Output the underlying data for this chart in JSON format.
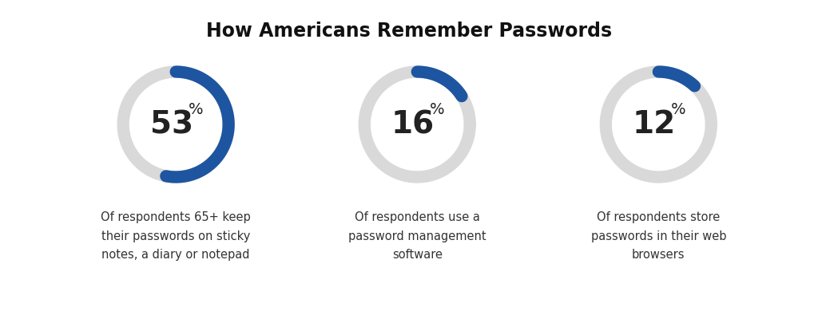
{
  "title": "How Americans Remember Passwords",
  "background_color": "#ffffff",
  "title_fontsize": 17,
  "title_fontweight": "bold",
  "title_color": "#111111",
  "donut_blue": "#1e55a0",
  "donut_gray": "#d9d9d9",
  "donut_linewidth": 11,
  "text_color": "#222222",
  "desc_color": "#333333",
  "items": [
    {
      "percent": 53,
      "label_main": "53",
      "label_super": "%",
      "description": "Of respondents 65+ keep\ntheir passwords on sticky\nnotes, a diary or notepad"
    },
    {
      "percent": 16,
      "label_main": "16",
      "label_super": "%",
      "description": "Of respondents use a\npassword management\nsoftware"
    },
    {
      "percent": 12,
      "label_main": "12",
      "label_super": "%",
      "description": "Of respondents store\npasswords in their web\nbrowsers"
    }
  ]
}
